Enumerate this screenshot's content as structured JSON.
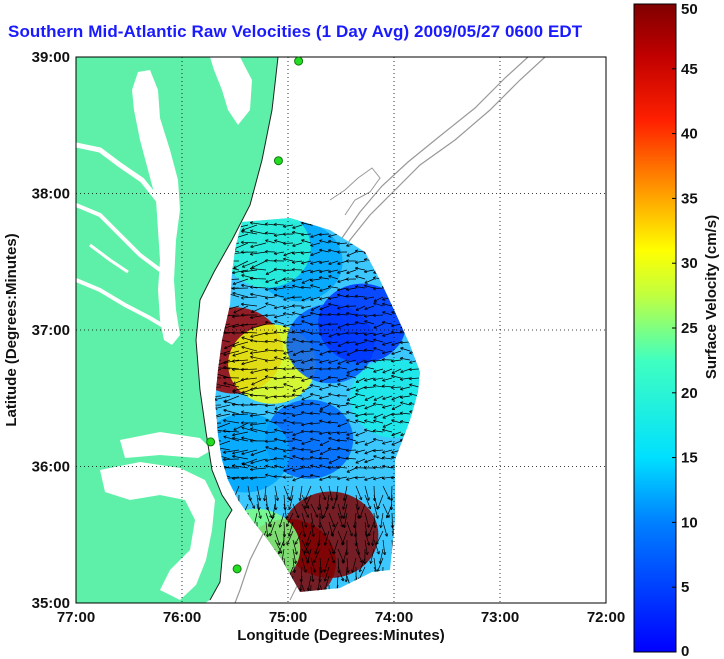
{
  "title": "Southern Mid-Atlantic Raw Velocities (1 Day Avg) 2009/05/27 0600 EDT",
  "map": {
    "xlabel": "Longitude (Degrees:Minutes)",
    "ylabel": "Latitude (Degrees:Minutes)",
    "lon_range": [
      -77,
      -72
    ],
    "lat_range": [
      35,
      39
    ],
    "lon_ticks": [
      {
        "value": -77,
        "label": "77:00"
      },
      {
        "value": -76,
        "label": "76:00"
      },
      {
        "value": -75,
        "label": "75:00"
      },
      {
        "value": -74,
        "label": "74:00"
      },
      {
        "value": -73,
        "label": "73:00"
      },
      {
        "value": -72,
        "label": "72:00"
      }
    ],
    "lat_ticks": [
      {
        "value": 39,
        "label": "39:00"
      },
      {
        "value": 38,
        "label": "38:00"
      },
      {
        "value": 37,
        "label": "37:00"
      },
      {
        "value": 36,
        "label": "36:00"
      },
      {
        "value": 35,
        "label": "35:00"
      }
    ],
    "grid": "dotted",
    "colors": {
      "land": "#5ef0a8",
      "water_background": "#ffffff",
      "bathymetry_contour": "#999999",
      "station_marker": "#22dd22",
      "title": "#1a1aff"
    },
    "stations": [
      {
        "name": "",
        "lon": -74.9,
        "lat": 38.97
      },
      {
        "name": "",
        "lon": -75.09,
        "lat": 38.24
      },
      {
        "name": "",
        "lon": -75.73,
        "lat": 36.18
      },
      {
        "name": "",
        "lon": -75.48,
        "lat": 35.25
      }
    ]
  },
  "colorbar": {
    "label": "Surface Velocity (cm/s)",
    "min": 0,
    "max": 50,
    "ticks": [
      {
        "value": 0,
        "label": "0"
      },
      {
        "value": 5,
        "label": "5"
      },
      {
        "value": 10,
        "label": "10"
      },
      {
        "value": 15,
        "label": "15"
      },
      {
        "value": 20,
        "label": "20"
      },
      {
        "value": 25,
        "label": "25"
      },
      {
        "value": 30,
        "label": "30"
      },
      {
        "value": 35,
        "label": "35"
      },
      {
        "value": 40,
        "label": "40"
      },
      {
        "value": 45,
        "label": "45"
      },
      {
        "value": 50,
        "label": "50"
      }
    ],
    "colormap": "jet"
  },
  "velocity_field": {
    "units": "cm/s",
    "regions": [
      {
        "lon": -75.5,
        "lat": 36.85,
        "speed": 48
      },
      {
        "lon": -75.15,
        "lat": 36.75,
        "speed": 30
      },
      {
        "lon": -74.6,
        "lat": 36.9,
        "speed": 7
      },
      {
        "lon": -74.3,
        "lat": 37.05,
        "speed": 4
      },
      {
        "lon": -74.9,
        "lat": 37.5,
        "speed": 12
      },
      {
        "lon": -75.2,
        "lat": 37.6,
        "speed": 20
      },
      {
        "lon": -74.8,
        "lat": 36.2,
        "speed": 8
      },
      {
        "lon": -75.4,
        "lat": 36.1,
        "speed": 12
      },
      {
        "lon": -74.6,
        "lat": 35.5,
        "speed": 50
      },
      {
        "lon": -75.0,
        "lat": 35.3,
        "speed": 50
      },
      {
        "lon": -75.3,
        "lat": 35.4,
        "speed": 25
      },
      {
        "lon": -74.0,
        "lat": 36.5,
        "speed": 18
      }
    ]
  }
}
